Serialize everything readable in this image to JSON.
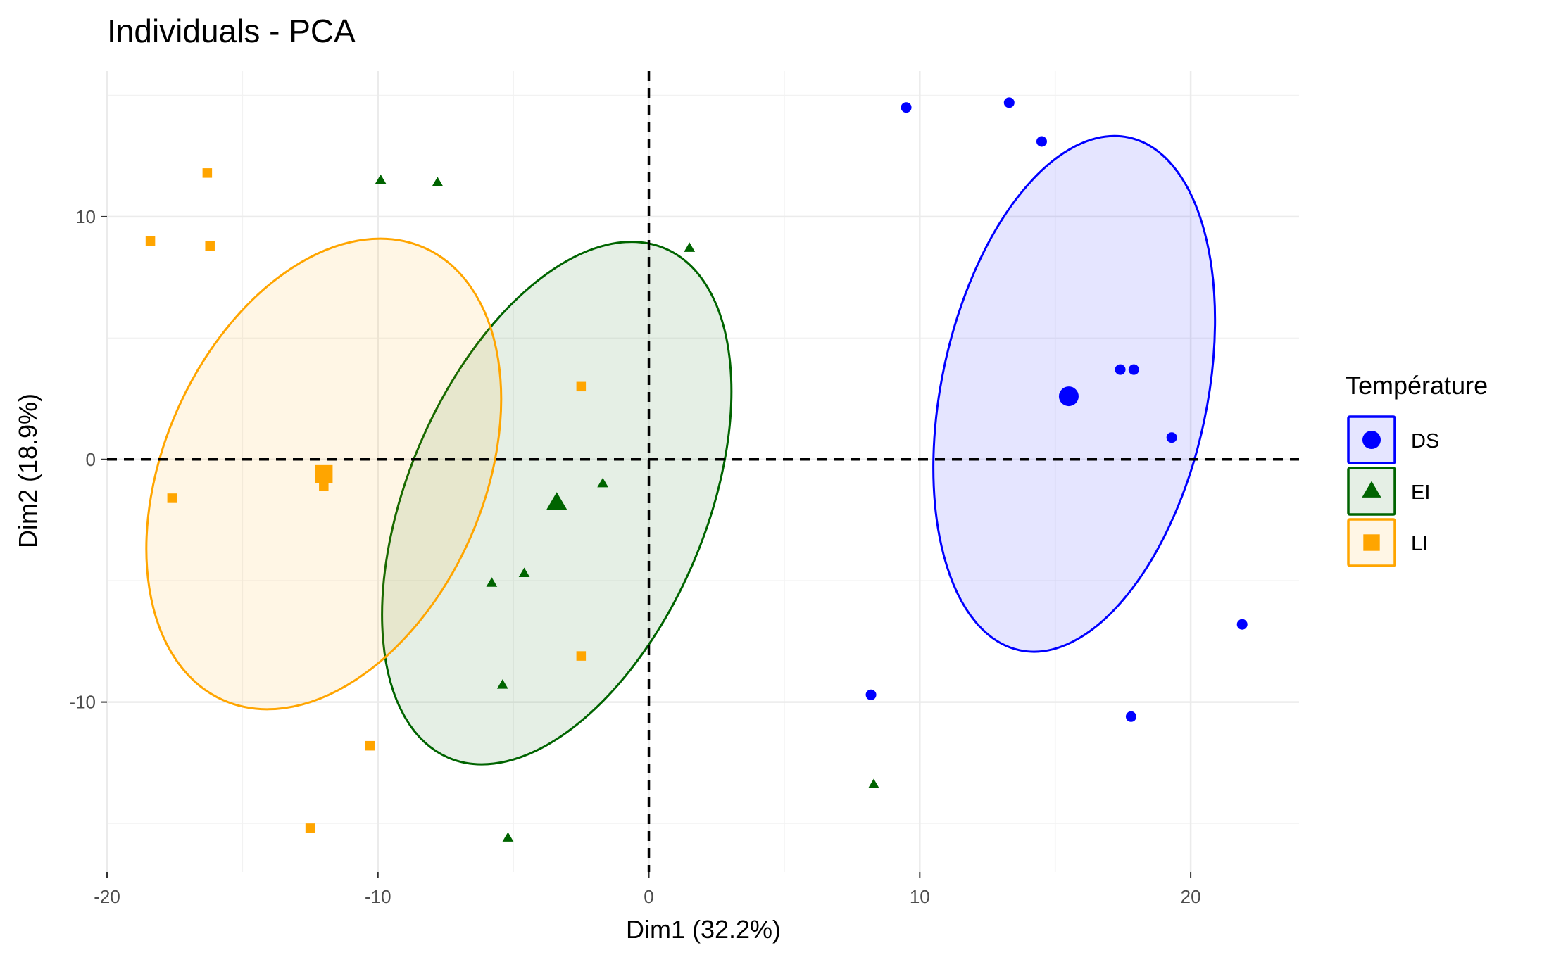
{
  "chart_data": {
    "type": "scatter",
    "title": "Individuals - PCA",
    "xlabel": "Dim1 (32.2%)",
    "ylabel": "Dim2 (18.9%)",
    "xlim": [
      -20,
      24
    ],
    "ylim": [
      -17,
      16
    ],
    "x_ticks": [
      -20,
      -10,
      0,
      10,
      20
    ],
    "y_ticks": [
      -10,
      0,
      10
    ],
    "x_tick_labels": [
      "-20",
      "-10",
      "0",
      "10",
      "20"
    ],
    "y_tick_labels": [
      "-10",
      "0",
      "10"
    ],
    "grid": true,
    "reference_lines": {
      "x": 0,
      "y": 0,
      "style": "dashed"
    },
    "legend": {
      "title": "Température",
      "position": "right"
    },
    "series": [
      {
        "name": "DS",
        "color": "#0000FF",
        "marker": "circle",
        "points": [
          {
            "x": 9.5,
            "y": 14.5
          },
          {
            "x": 13.3,
            "y": 14.7
          },
          {
            "x": 14.5,
            "y": 13.1
          },
          {
            "x": 17.4,
            "y": 3.7
          },
          {
            "x": 17.9,
            "y": 3.7
          },
          {
            "x": 19.3,
            "y": 0.9
          },
          {
            "x": 21.9,
            "y": -6.8
          },
          {
            "x": 17.8,
            "y": -10.6
          },
          {
            "x": 8.2,
            "y": -9.7
          }
        ],
        "centroid": {
          "x": 15.5,
          "y": 2.6
        },
        "ellipse": {
          "cx": 15.7,
          "cy": 2.7,
          "rx": 4.9,
          "ry": 10.8,
          "angle_deg": 12
        }
      },
      {
        "name": "EI",
        "color": "#006400",
        "marker": "triangle",
        "points": [
          {
            "x": -9.9,
            "y": 11.5
          },
          {
            "x": -7.8,
            "y": 11.4
          },
          {
            "x": 1.5,
            "y": 8.7
          },
          {
            "x": -1.7,
            "y": -1.0
          },
          {
            "x": -4.6,
            "y": -4.7
          },
          {
            "x": -5.8,
            "y": -5.1
          },
          {
            "x": -5.4,
            "y": -9.3
          },
          {
            "x": -5.2,
            "y": -15.6
          },
          {
            "x": 8.3,
            "y": -13.4
          }
        ],
        "centroid": {
          "x": -3.4,
          "y": -1.8
        },
        "ellipse": {
          "cx": -3.4,
          "cy": -1.8,
          "rx": 5.5,
          "ry": 11.4,
          "angle_deg": 23
        }
      },
      {
        "name": "LI",
        "color": "#FFA500",
        "marker": "square",
        "points": [
          {
            "x": -16.3,
            "y": 11.8
          },
          {
            "x": -18.4,
            "y": 9.0
          },
          {
            "x": -16.2,
            "y": 8.8
          },
          {
            "x": -2.5,
            "y": 3.0
          },
          {
            "x": -17.6,
            "y": -1.6
          },
          {
            "x": -12.0,
            "y": -1.1
          },
          {
            "x": -2.5,
            "y": -8.1
          },
          {
            "x": -10.3,
            "y": -11.8
          },
          {
            "x": -12.5,
            "y": -15.2
          }
        ],
        "centroid": {
          "x": -12.0,
          "y": -0.6
        },
        "ellipse": {
          "cx": -12.0,
          "cy": -0.6,
          "rx": 5.9,
          "ry": 10.2,
          "angle_deg": 24
        }
      }
    ]
  }
}
